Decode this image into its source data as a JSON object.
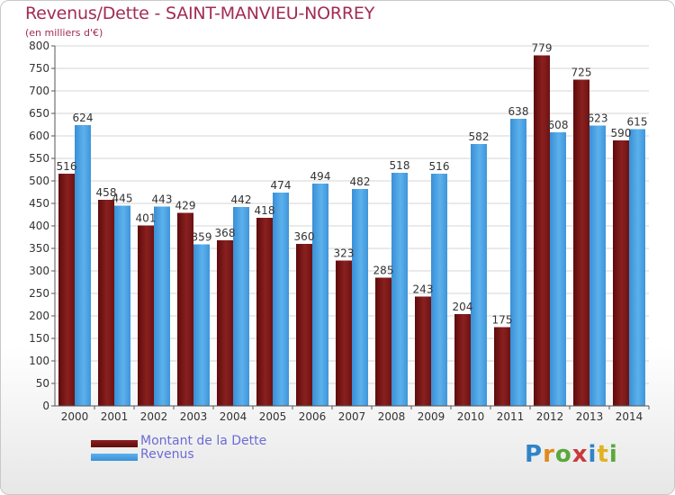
{
  "header": {
    "title": "Revenus/Dette - SAINT-MANVIEU-NORREY",
    "subtitle": "(en milliers d'€)"
  },
  "chart_data": {
    "type": "bar",
    "title": "Revenus/Dette - SAINT-MANVIEU-NORREY",
    "ylabel": "(en milliers d'€)",
    "ylim": [
      0,
      800
    ],
    "yticks": [
      0,
      50,
      100,
      150,
      200,
      250,
      300,
      350,
      400,
      450,
      500,
      550,
      600,
      650,
      700,
      750,
      800
    ],
    "grid": true,
    "legend_placement": "bottom-left",
    "categories": [
      "2000",
      "2001",
      "2002",
      "2003",
      "2004",
      "2005",
      "2006",
      "2007",
      "2008",
      "2009",
      "2010",
      "2011",
      "2012",
      "2013",
      "2014"
    ],
    "series": [
      {
        "name": "Montant de la Dette",
        "color": "#7a1414",
        "values": [
          516,
          458,
          401,
          429,
          368,
          418,
          360,
          323,
          285,
          243,
          204,
          175,
          779,
          725,
          590
        ]
      },
      {
        "name": "Revenus",
        "color": "#4a9fdf",
        "values": [
          624,
          445,
          443,
          359,
          442,
          474,
          494,
          482,
          518,
          516,
          582,
          638,
          608,
          623,
          615
        ]
      }
    ]
  },
  "logo": {
    "letters": [
      "P",
      "r",
      "o",
      "x",
      "i",
      "t",
      "i"
    ],
    "colors": [
      "#2f84c9",
      "#e08a1e",
      "#5aa83a",
      "#c93a3a",
      "#2f84c9",
      "#e0b21e",
      "#5aa83a"
    ]
  }
}
